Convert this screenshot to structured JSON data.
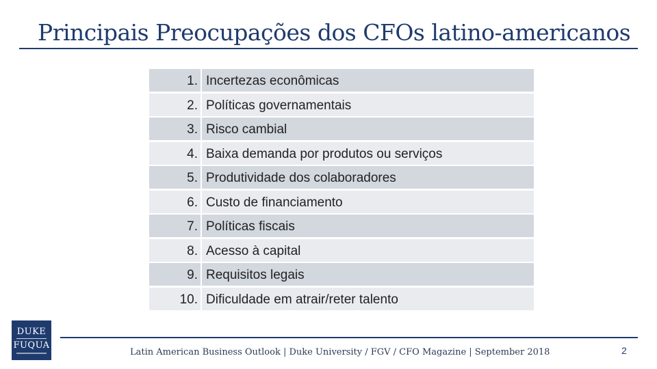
{
  "slide": {
    "title": "Principais Preocupações dos CFOs latino-americanos",
    "items": [
      {
        "num": "1.",
        "text": "Incertezas econômicas"
      },
      {
        "num": "2.",
        "text": "Políticas governamentais"
      },
      {
        "num": "3.",
        "text": "Risco cambial"
      },
      {
        "num": "4.",
        "text": "Baixa demanda por produtos ou serviços"
      },
      {
        "num": "5.",
        "text": "Produtividade dos colaboradores"
      },
      {
        "num": "6.",
        "text": "Custo de financiamento"
      },
      {
        "num": "7.",
        "text": "Políticas fiscais"
      },
      {
        "num": "8.",
        "text": "Acesso à capital"
      },
      {
        "num": "9.",
        "text": "Requisitos legais"
      },
      {
        "num": "10.",
        "text": "Dificuldade em atrair/reter talento"
      }
    ],
    "logo": {
      "line1": "DUKE",
      "line2": "FUQUA"
    },
    "footer": "Latin American Business Outlook | Duke University / FGV / CFO Magazine | September 2018",
    "page_number": "2",
    "colors": {
      "brand": "#1f3b6e",
      "row_dark": "#d3d7de",
      "row_light": "#e9ebef"
    }
  }
}
